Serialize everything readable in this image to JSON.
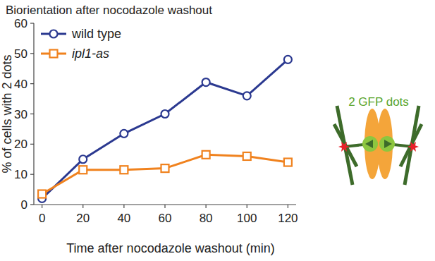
{
  "chart_data": {
    "type": "line",
    "title": "Biorientation after nocodazole washout",
    "x_label": "Time after nocodazole washout (min)",
    "y_label": "% of cells with 2 dots",
    "x": [
      0,
      20,
      40,
      60,
      80,
      100,
      120
    ],
    "series": [
      {
        "name": "wild type",
        "color": "#2b3990",
        "marker": "circle",
        "values": [
          2,
          15,
          23.5,
          30,
          40.5,
          36,
          48
        ]
      },
      {
        "name": "ipl1-as",
        "color": "#f0821e",
        "marker": "square",
        "values": [
          3.5,
          11.5,
          11.5,
          12,
          16.5,
          16,
          14
        ]
      }
    ],
    "xlim": [
      -4,
      124
    ],
    "xticks": [
      0,
      20,
      40,
      60,
      80,
      100,
      120
    ],
    "ylim": [
      0,
      60
    ],
    "yticks": [
      0,
      10,
      20,
      30,
      40,
      50,
      60
    ],
    "grid": false,
    "legend": "upper left",
    "annotations": [
      "2 GFP dots"
    ]
  }
}
